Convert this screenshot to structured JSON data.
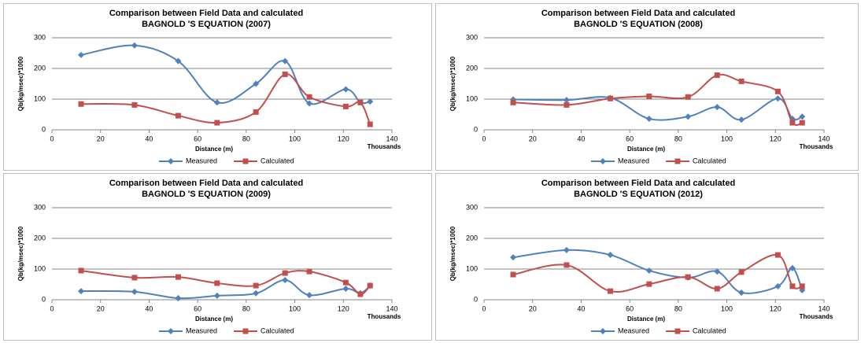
{
  "chart_data": [
    {
      "type": "line",
      "title": "Comparison between Field Data and calculated",
      "subtitle": "BAGNOLD 'S EQUATION (2007)",
      "x_label": "Distance (m)",
      "x_units": "Thousands",
      "y_label": "Qb(kg/msec)*1000",
      "x": [
        12,
        34,
        52,
        68,
        84,
        96,
        106,
        121,
        127,
        131
      ],
      "xlim": [
        0,
        140
      ],
      "xticks": [
        0,
        20,
        40,
        60,
        80,
        100,
        120,
        140
      ],
      "ylim": [
        0,
        300
      ],
      "yticks": [
        0,
        100,
        200,
        300
      ],
      "grid": true,
      "series": [
        {
          "name": "Measured",
          "color": "#4f81bd",
          "marker": "diamond",
          "values": [
            244,
            275,
            224,
            89,
            150,
            224,
            86,
            132,
            89,
            92
          ]
        },
        {
          "name": "Calculated",
          "color": "#c0504d",
          "marker": "square",
          "values": [
            84,
            81,
            46,
            23,
            58,
            181,
            107,
            76,
            89,
            18
          ]
        }
      ]
    },
    {
      "type": "line",
      "title": "Comparison between Field Data and calculated",
      "subtitle": "BAGNOLD 'S EQUATION (2008)",
      "x_label": "Distance (m)",
      "x_units": "Thousands",
      "y_label": "Qb(kg/msec)*1000",
      "x": [
        12,
        34,
        52,
        68,
        84,
        96,
        106,
        121,
        127,
        131
      ],
      "xlim": [
        0,
        140
      ],
      "xticks": [
        0,
        20,
        40,
        60,
        80,
        100,
        120,
        140
      ],
      "ylim": [
        0,
        300
      ],
      "yticks": [
        0,
        100,
        200,
        300
      ],
      "grid": true,
      "series": [
        {
          "name": "Measured",
          "color": "#4f81bd",
          "marker": "diamond",
          "values": [
            99,
            97,
            104,
            36,
            43,
            74,
            33,
            102,
            36,
            43
          ]
        },
        {
          "name": "Calculated",
          "color": "#c0504d",
          "marker": "square",
          "values": [
            89,
            81,
            102,
            109,
            107,
            178,
            158,
            125,
            23,
            23
          ]
        }
      ]
    },
    {
      "type": "line",
      "title": "Comparison between Field Data and calculated",
      "subtitle": "BAGNOLD 'S EQUATION (2009)",
      "x_label": "Distance (m)",
      "x_units": "Thousands",
      "y_label": "Qb(kg/msec)*1000",
      "x": [
        12,
        34,
        52,
        68,
        84,
        96,
        106,
        121,
        127,
        131
      ],
      "xlim": [
        0,
        140
      ],
      "xticks": [
        0,
        20,
        40,
        60,
        80,
        100,
        120,
        140
      ],
      "ylim": [
        0,
        300
      ],
      "yticks": [
        0,
        100,
        200,
        300
      ],
      "grid": true,
      "series": [
        {
          "name": "Measured",
          "color": "#4f81bd",
          "marker": "diamond",
          "values": [
            28,
            26,
            5,
            13,
            21,
            64,
            15,
            36,
            21,
            46
          ]
        },
        {
          "name": "Calculated",
          "color": "#c0504d",
          "marker": "square",
          "values": [
            95,
            72,
            74,
            54,
            46,
            87,
            92,
            56,
            18,
            46
          ]
        }
      ]
    },
    {
      "type": "line",
      "title": "Comparison between Field Data and calculated",
      "subtitle": "BAGNOLD 'S EQUATION (2012)",
      "x_label": "Distance (m)",
      "x_units": "Thousands",
      "y_label": "Qb(kg/msec)*1000",
      "x": [
        12,
        34,
        52,
        68,
        84,
        96,
        106,
        121,
        127,
        131
      ],
      "xlim": [
        0,
        140
      ],
      "xticks": [
        0,
        20,
        40,
        60,
        80,
        100,
        120,
        140
      ],
      "ylim": [
        0,
        300
      ],
      "yticks": [
        0,
        100,
        200,
        300
      ],
      "grid": true,
      "series": [
        {
          "name": "Measured",
          "color": "#4f81bd",
          "marker": "diamond",
          "values": [
            138,
            162,
            146,
            95,
            72,
            92,
            23,
            44,
            103,
            31
          ]
        },
        {
          "name": "Calculated",
          "color": "#c0504d",
          "marker": "square",
          "values": [
            82,
            113,
            28,
            51,
            74,
            36,
            90,
            146,
            44,
            44
          ]
        }
      ]
    }
  ]
}
